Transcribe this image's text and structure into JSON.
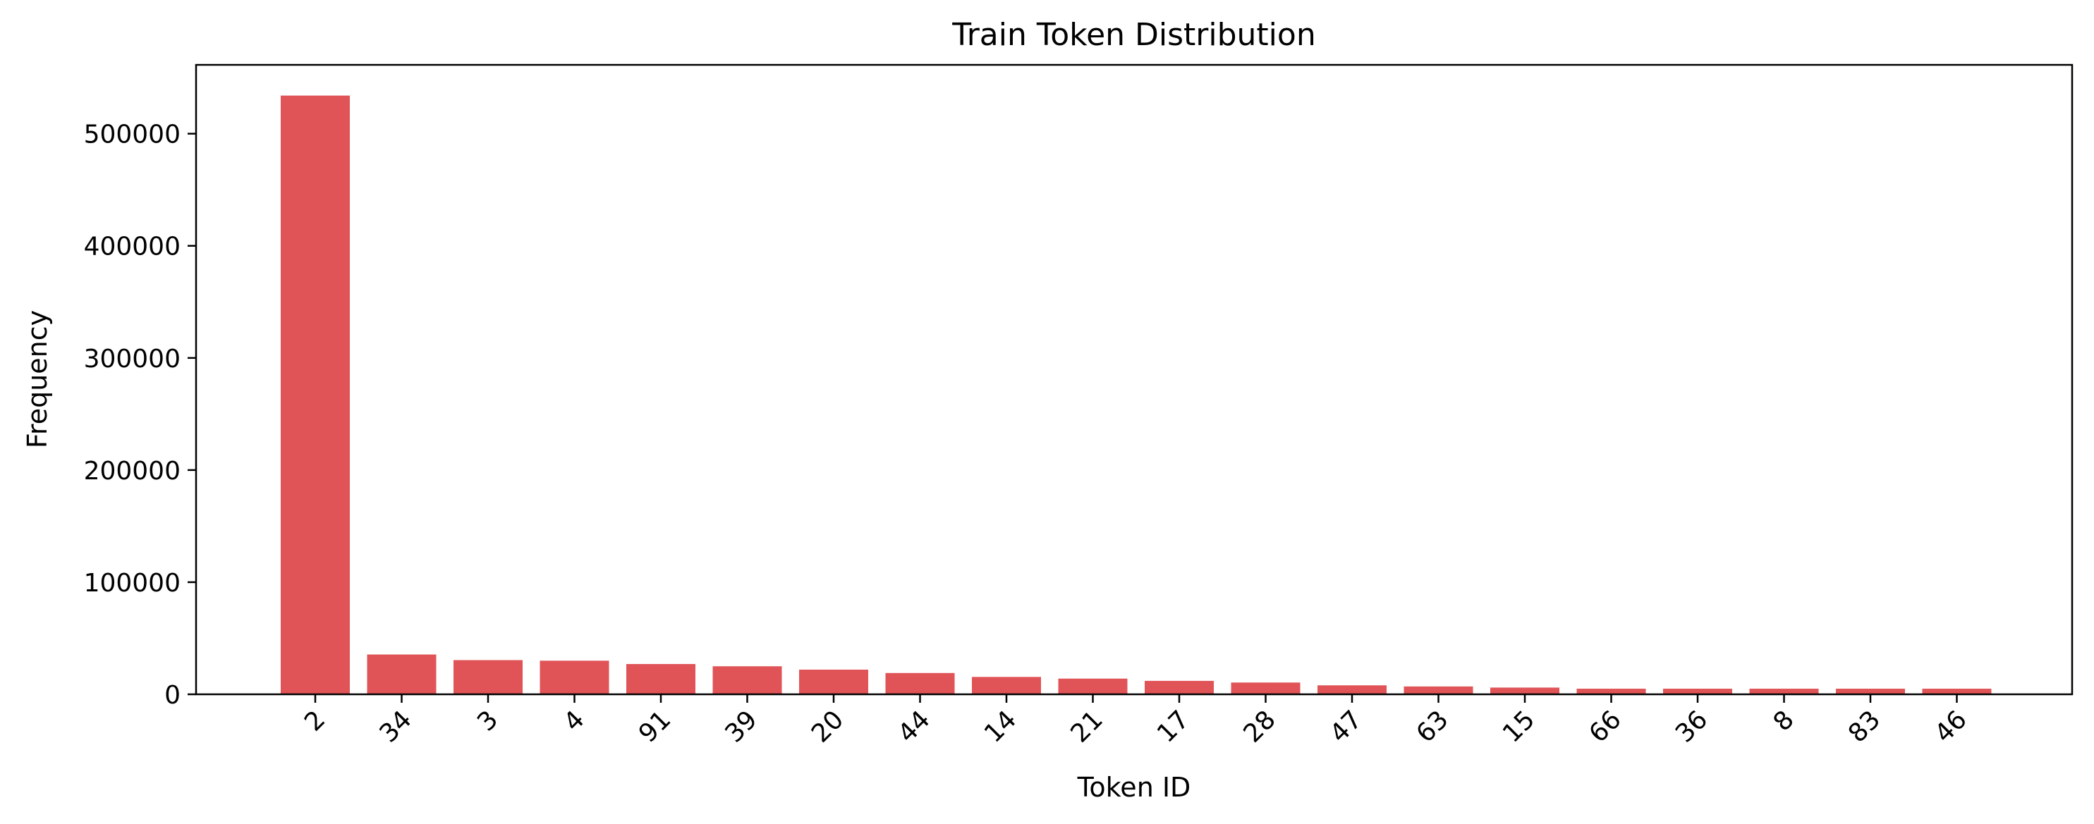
{
  "chart_data": {
    "type": "bar",
    "title": "Train Token Distribution",
    "xlabel": "Token ID",
    "ylabel": "Frequency",
    "categories": [
      "2",
      "34",
      "3",
      "4",
      "91",
      "39",
      "20",
      "44",
      "14",
      "21",
      "17",
      "28",
      "47",
      "63",
      "15",
      "66",
      "36",
      "8",
      "83",
      "46"
    ],
    "values": [
      534000,
      35500,
      30500,
      30000,
      27000,
      25000,
      22000,
      19000,
      15500,
      14000,
      12000,
      10500,
      8000,
      7000,
      6000,
      5000,
      5000,
      5000,
      5000,
      5000
    ],
    "ylim": [
      0,
      535000
    ],
    "yticks": [
      0,
      100000,
      200000,
      300000,
      400000,
      500000
    ],
    "bar_color": "#e05457",
    "grid": false,
    "legend": "none"
  }
}
